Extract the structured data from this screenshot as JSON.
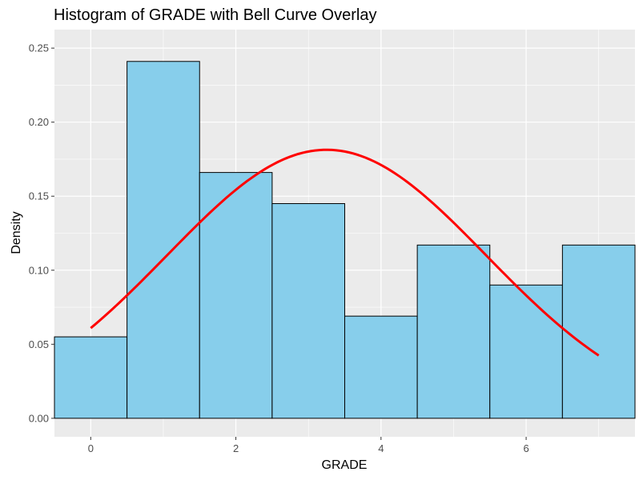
{
  "chart_data": {
    "type": "bar",
    "title": "Histogram of GRADE with Bell Curve Overlay",
    "xlabel": "GRADE",
    "ylabel": "Density",
    "xlim": [
      -0.5,
      7.5
    ],
    "ylim": [
      0,
      0.25
    ],
    "x_ticks": [
      0,
      2,
      4,
      6
    ],
    "x_tick_labels": [
      "0",
      "2",
      "4",
      "6"
    ],
    "y_ticks": [
      0,
      0.05,
      0.1,
      0.15,
      0.2,
      0.25
    ],
    "y_tick_labels": [
      "0.00",
      "0.05",
      "0.10",
      "0.15",
      "0.20",
      "0.25"
    ],
    "grid": true,
    "legend": "none",
    "bins": [
      {
        "x": 0,
        "x_start": -0.5,
        "x_end": 0.5,
        "density": 0.055
      },
      {
        "x": 1,
        "x_start": 0.5,
        "x_end": 1.5,
        "density": 0.241
      },
      {
        "x": 2,
        "x_start": 1.5,
        "x_end": 2.5,
        "density": 0.166
      },
      {
        "x": 3,
        "x_start": 2.5,
        "x_end": 3.5,
        "density": 0.145
      },
      {
        "x": 4,
        "x_start": 3.5,
        "x_end": 4.5,
        "density": 0.069
      },
      {
        "x": 5,
        "x_start": 4.5,
        "x_end": 5.5,
        "density": 0.117
      },
      {
        "x": 6,
        "x_start": 5.5,
        "x_end": 6.5,
        "density": 0.09
      },
      {
        "x": 7,
        "x_start": 6.5,
        "x_end": 7.5,
        "density": 0.117
      }
    ],
    "curve": {
      "type": "normal-density",
      "mean": 3.25,
      "sd": 2.2,
      "x_range": [
        0,
        7
      ],
      "color": "#FF0000"
    },
    "colors": {
      "bar_fill": "#87CEEB",
      "bar_stroke": "#000000",
      "panel_bg": "#EBEBEB",
      "grid_major": "#FFFFFF"
    }
  }
}
